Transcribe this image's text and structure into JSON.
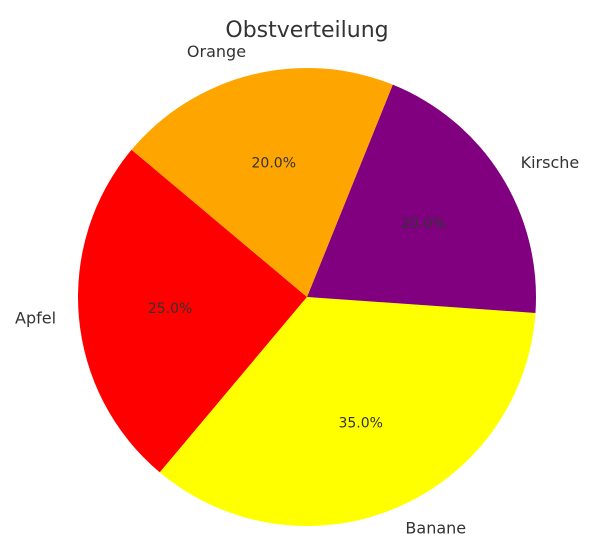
{
  "chart_data": {
    "type": "pie",
    "title": "Obstverteilung",
    "categories": [
      "Apfel",
      "Banane",
      "Kirsche",
      "Orange"
    ],
    "values": [
      25,
      35,
      20,
      20
    ],
    "percent_labels": [
      "25.0%",
      "35.0%",
      "20.0%",
      "20.0%"
    ],
    "colors": [
      "#ff0000",
      "#ffff00",
      "#800080",
      "#ffa500"
    ],
    "start_angle_deg": 140,
    "direction": "counterclockwise",
    "legend": "none"
  }
}
